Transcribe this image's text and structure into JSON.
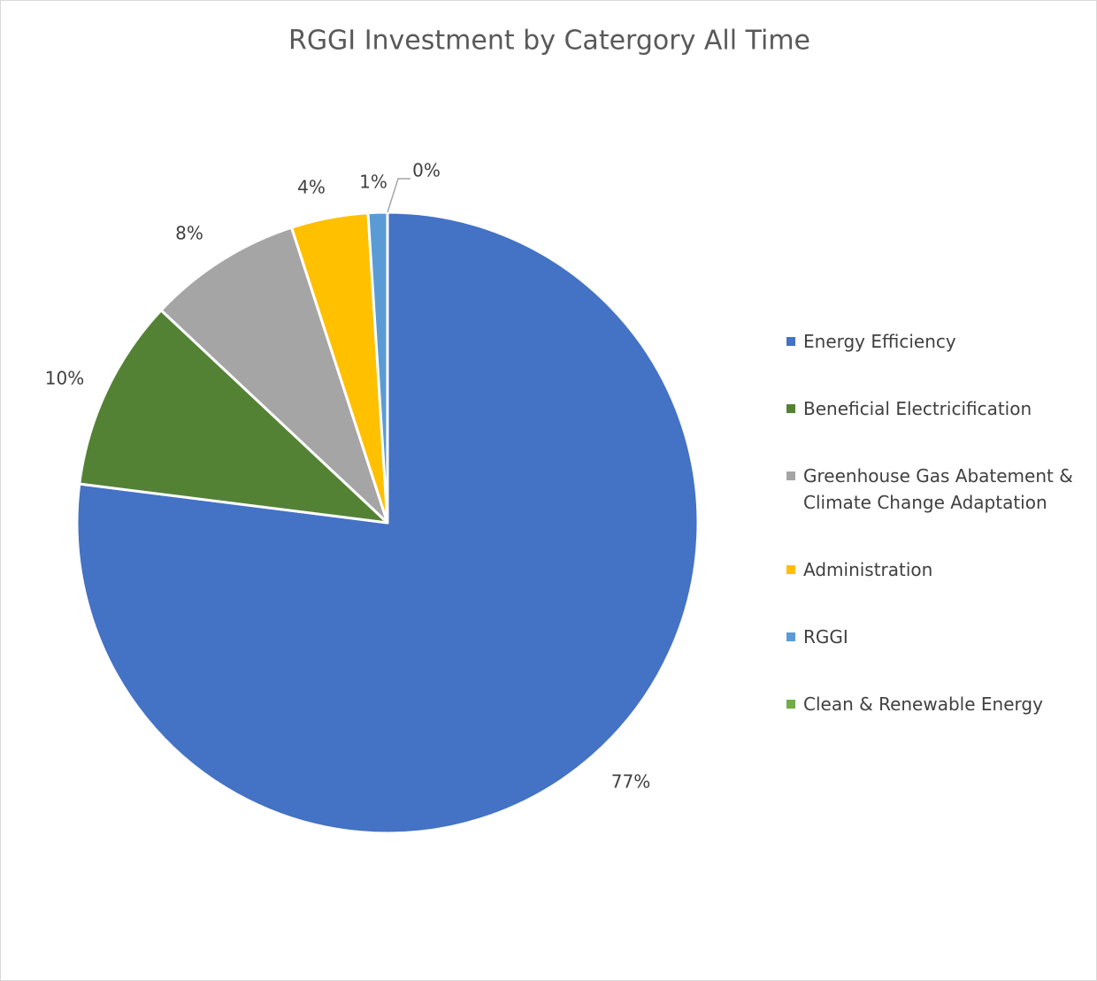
{
  "chart_data": {
    "type": "pie",
    "title": "RGGI Investment by Catergory All Time",
    "categories": [
      "Energy Efficiency",
      "Beneficial Electricification",
      "Greenhouse Gas Abatement & Climate Change Adaptation",
      "Administration",
      "RGGI",
      "Clean & Renewable Energy"
    ],
    "values": [
      77,
      10,
      8,
      4,
      1,
      0
    ],
    "value_labels": [
      "77%",
      "10%",
      "8%",
      "4%",
      "1%",
      "0%"
    ],
    "colors": [
      "#4472c4",
      "#548235",
      "#a5a5a5",
      "#ffc000",
      "#5b9bd5",
      "#70ad47"
    ],
    "legend": "right"
  }
}
